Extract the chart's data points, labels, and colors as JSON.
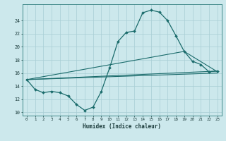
{
  "xlabel": "Humidex (Indice chaleur)",
  "xlim": [
    -0.5,
    23.5
  ],
  "ylim": [
    9.5,
    26.5
  ],
  "yticks": [
    10,
    12,
    14,
    16,
    18,
    20,
    22,
    24
  ],
  "xticks": [
    0,
    1,
    2,
    3,
    4,
    5,
    6,
    7,
    8,
    9,
    10,
    11,
    12,
    13,
    14,
    15,
    16,
    17,
    18,
    19,
    20,
    21,
    22,
    23
  ],
  "bg_color": "#cce8ec",
  "grid_color": "#a8cdd4",
  "line_color": "#1a6b6b",
  "main_curve": {
    "x": [
      0,
      1,
      2,
      3,
      4,
      5,
      6,
      7,
      8,
      9,
      10,
      11,
      12,
      13,
      14,
      15,
      16,
      17,
      18,
      19,
      20,
      21,
      22,
      23
    ],
    "y": [
      15.0,
      13.5,
      13.0,
      13.2,
      13.0,
      12.5,
      11.2,
      10.3,
      10.8,
      13.2,
      16.8,
      20.8,
      22.2,
      22.4,
      25.2,
      25.6,
      25.3,
      24.0,
      21.7,
      19.3,
      17.8,
      17.3,
      16.2,
      16.3
    ]
  },
  "line1": {
    "x": [
      0,
      23
    ],
    "y": [
      15.0,
      16.0
    ]
  },
  "line2": {
    "x": [
      0,
      23
    ],
    "y": [
      15.0,
      16.3
    ]
  },
  "line3": {
    "x": [
      0,
      19,
      23
    ],
    "y": [
      15.0,
      19.3,
      16.2
    ]
  }
}
